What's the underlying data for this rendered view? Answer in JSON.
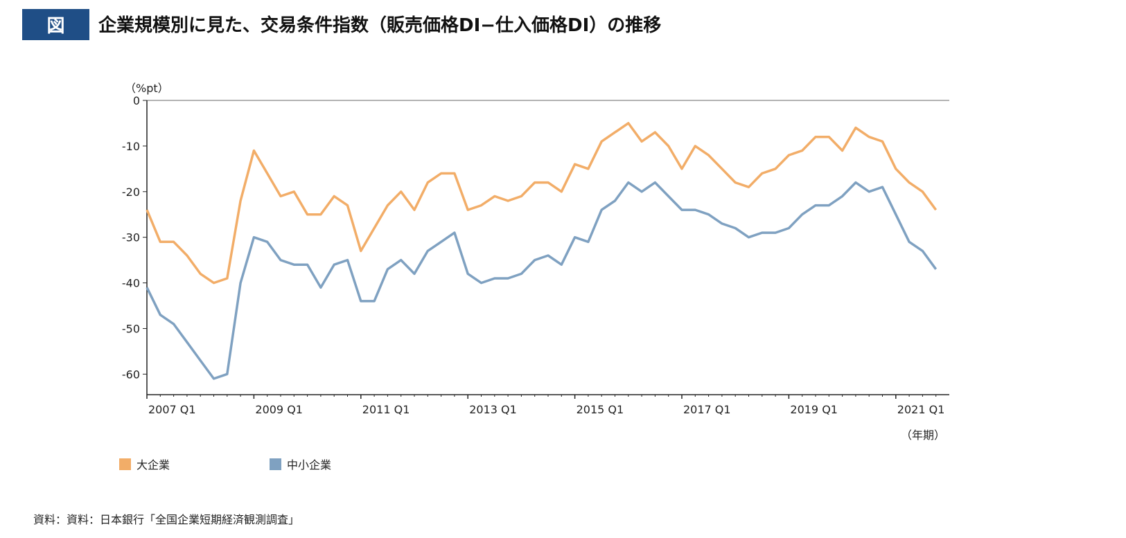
{
  "header": {
    "badge": "図",
    "title": "企業規模別に見た、交易条件指数（販売価格DI−仕入価格DI）の推移"
  },
  "source": "資料：資料：日本銀行「全国企業短期経済観測調査」",
  "chart_data": {
    "type": "line",
    "title": "企業規模別に見た、交易条件指数（販売価格DI−仕入価格DI）の推移",
    "ylabel": "（%pt）",
    "xlabel": "（年期）",
    "ylim": [
      -64.5,
      0
    ],
    "yticks": [
      0,
      -10,
      -20,
      -30,
      -40,
      -50,
      -60
    ],
    "x_start": "2007 Q1",
    "x_end": "2021 Q4",
    "xtick_labels": [
      "2007 Q1",
      "2009 Q1",
      "2011 Q1",
      "2013 Q1",
      "2015 Q1",
      "2017 Q1",
      "2019 Q1",
      "2021 Q1"
    ],
    "legend_position": "bottom-left",
    "grid": false,
    "series": [
      {
        "name": "大企業",
        "color": "#f2ad68",
        "values": [
          -24,
          -31,
          -31,
          -34,
          -38,
          -40,
          -39,
          -22,
          -11,
          -16,
          -21,
          -20,
          -25,
          -25,
          -21,
          -23,
          -33,
          -28,
          -23,
          -20,
          -24,
          -18,
          -16,
          -16,
          -24,
          -23,
          -21,
          -22,
          -21,
          -18,
          -18,
          -20,
          -14,
          -15,
          -9,
          -7,
          -5,
          -9,
          -7,
          -10,
          -15,
          -10,
          -12,
          -15,
          -18,
          -19,
          -16,
          -15,
          -12,
          -11,
          -8,
          -8,
          -11,
          -6,
          -8,
          -9,
          -15,
          -18,
          -20,
          -24
        ]
      },
      {
        "name": "中小企業",
        "color": "#7fa1c1",
        "values": [
          -41,
          -47,
          -49,
          -53,
          -57,
          -61,
          -60,
          -40,
          -30,
          -31,
          -35,
          -36,
          -36,
          -41,
          -36,
          -35,
          -44,
          -44,
          -37,
          -35,
          -38,
          -33,
          -31,
          -29,
          -38,
          -40,
          -39,
          -39,
          -38,
          -35,
          -34,
          -36,
          -30,
          -31,
          -24,
          -22,
          -18,
          -20,
          -18,
          -21,
          -24,
          -24,
          -25,
          -27,
          -28,
          -30,
          -29,
          -29,
          -28,
          -25,
          -23,
          -23,
          -21,
          -18,
          -20,
          -19,
          -25,
          -31,
          -33,
          -37
        ]
      }
    ]
  }
}
